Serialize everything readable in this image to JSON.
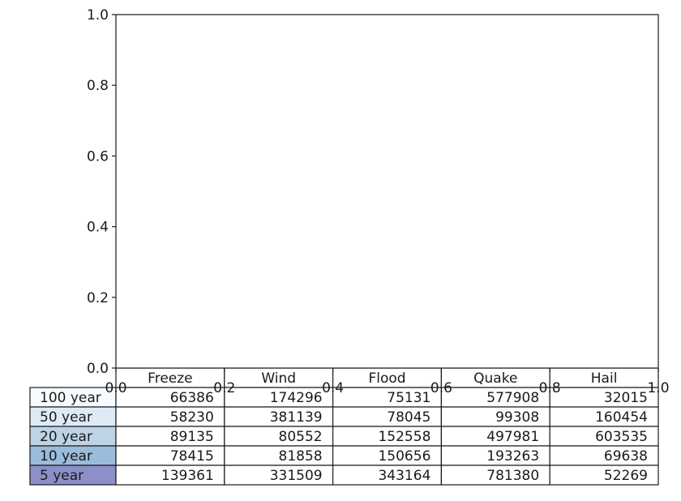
{
  "chart_data": {
    "type": "table",
    "title": "",
    "xlabel": "",
    "ylabel": "",
    "xlim": [
      0.0,
      1.0
    ],
    "ylim": [
      0.0,
      1.0
    ],
    "x_ticks": [
      "0.0",
      "0.2",
      "0.4",
      "0.6",
      "0.8",
      "1.0"
    ],
    "y_ticks": [
      "0.0",
      "0.2",
      "0.4",
      "0.6",
      "0.8",
      "1.0"
    ],
    "grid": false,
    "legend": "none",
    "columns": [
      "Freeze",
      "Wind",
      "Flood",
      "Quake",
      "Hail"
    ],
    "rows": [
      {
        "label": "100 year",
        "color": "#f7fbff",
        "values": [
          66386,
          174296,
          75131,
          577908,
          32015
        ]
      },
      {
        "label": "50 year",
        "color": "#deebf7",
        "values": [
          58230,
          381139,
          78045,
          99308,
          160454
        ]
      },
      {
        "label": "20 year",
        "color": "#bed3e6",
        "values": [
          89135,
          80552,
          152558,
          497981,
          603535
        ]
      },
      {
        "label": "10 year",
        "color": "#9bbcdb",
        "values": [
          78415,
          81858,
          150656,
          193263,
          69638
        ]
      },
      {
        "label": "5 year",
        "color": "#8c8fc8",
        "values": [
          139361,
          331509,
          343164,
          781380,
          52269
        ]
      }
    ]
  }
}
